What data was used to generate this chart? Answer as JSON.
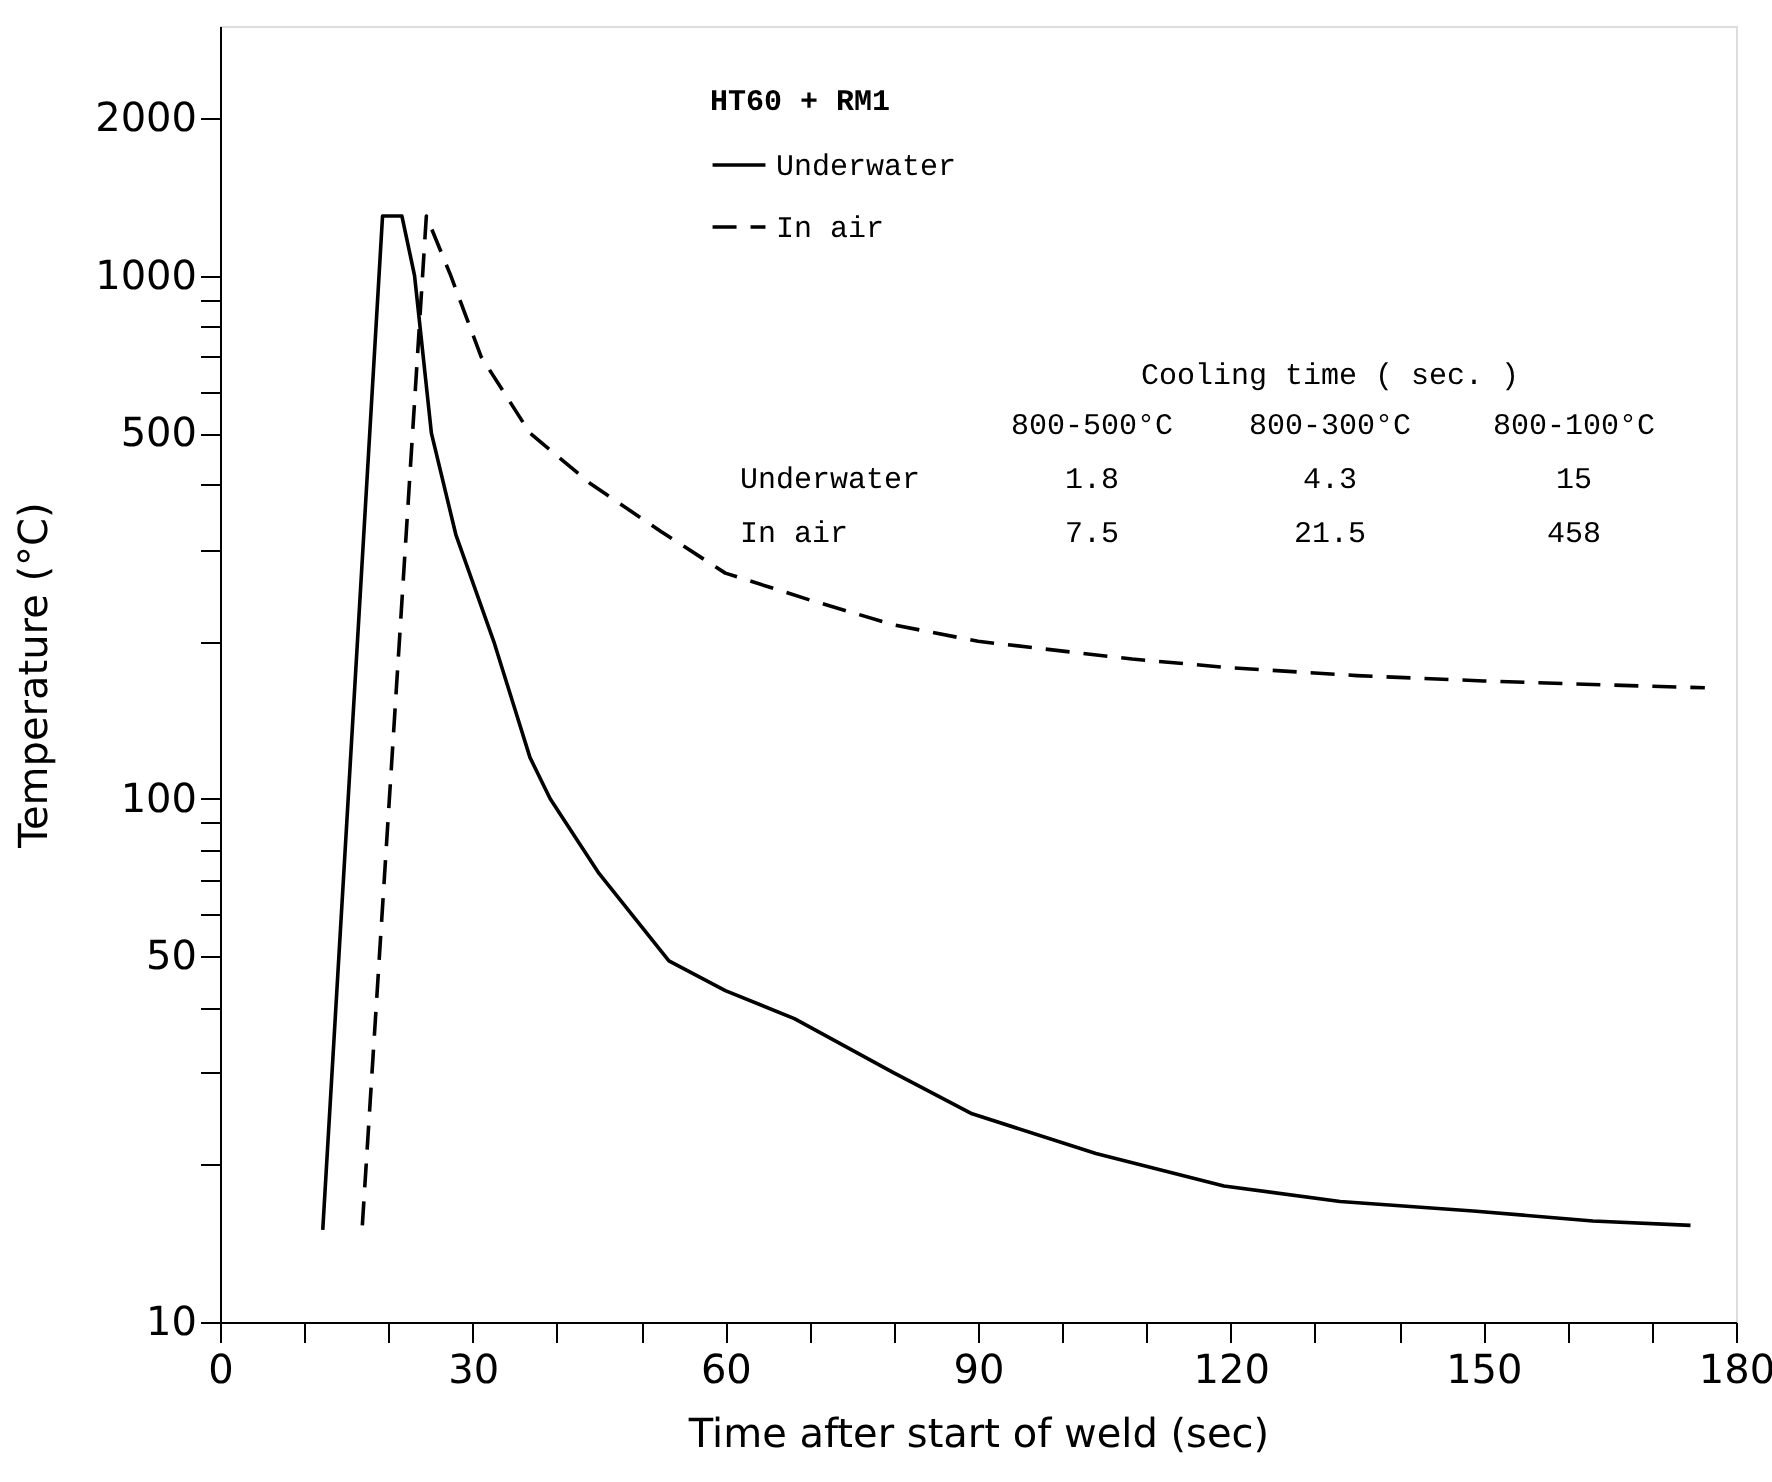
{
  "chart_data": {
    "type": "line",
    "xlabel": "Time after start of weld (sec)",
    "ylabel": "Temperature (°C)",
    "legend_title": "HT60 + RM1",
    "legend": "top",
    "log": true,
    "grid": false,
    "marker": "none",
    "xlim": [
      0,
      180
    ],
    "xticks": [
      0,
      {
        "value": 10,
        "label": null
      },
      {
        "value": 20,
        "label": null
      },
      30,
      {
        "value": 40,
        "label": null
      },
      {
        "value": 50,
        "label": null
      },
      60,
      {
        "value": 70,
        "label": null
      },
      {
        "value": 80,
        "label": null
      },
      90,
      {
        "value": 100,
        "label": null
      },
      {
        "value": 110,
        "label": null
      },
      120,
      {
        "value": 130,
        "label": null
      },
      {
        "value": 140,
        "label": null
      },
      150,
      {
        "value": 160,
        "label": null
      },
      {
        "value": 170,
        "label": null
      },
      180
    ],
    "ylim": [
      10,
      3000
    ],
    "yticks": [
      10,
      {
        "value": 20,
        "label": null
      },
      {
        "value": 30,
        "label": null
      },
      {
        "value": 40,
        "label": null
      },
      50,
      {
        "value": 60,
        "label": null
      },
      {
        "value": 70,
        "label": null
      },
      {
        "value": 80,
        "label": null
      },
      {
        "value": 90,
        "label": null
      },
      100,
      {
        "value": 200,
        "label": null
      },
      {
        "value": 300,
        "label": null
      },
      {
        "value": 400,
        "label": null
      },
      500,
      {
        "value": 600,
        "label": null
      },
      {
        "value": 700,
        "label": null
      },
      {
        "value": 800,
        "label": null
      },
      {
        "value": 900,
        "label": null
      },
      1000,
      2000
    ],
    "series": [
      {
        "name": "Underwater",
        "color": "#000000",
        "line_style": "solid",
        "x": [
          12.2,
          19.3,
          21.6,
          23.1,
          25.1,
          28,
          32.5,
          36.8,
          39.2,
          45,
          53.3,
          60,
          68.2,
          79.9,
          89.3,
          104,
          119.2,
          133,
          148.8,
          163,
          174.6
        ],
        "values": [
          15,
          1300,
          1300,
          1000,
          500,
          320,
          200,
          120,
          100,
          72,
          49,
          43,
          38,
          30,
          25,
          21,
          18.2,
          17,
          16.3,
          15.6,
          15.3
        ]
      },
      {
        "name": "In air",
        "color": "#000000",
        "line_style": "dashed",
        "x": [
          16.9,
          24.5,
          27.4,
          31,
          36.8,
          44,
          52.4,
          60,
          70,
          80,
          90,
          108.3,
          120,
          135,
          150,
          165,
          176.3
        ],
        "values": [
          15.3,
          1300,
          1000,
          700,
          500,
          400,
          324,
          270,
          240,
          215,
          200,
          185,
          178,
          172,
          168,
          165,
          163
        ]
      }
    ],
    "annotations": [
      "Cooling time ( sec. )",
      "800-500°C",
      "800-300°C",
      "800-100°C",
      "Underwater",
      "1.8",
      "4.3",
      "15",
      "In air",
      "7.5",
      "21.5",
      "458"
    ]
  }
}
